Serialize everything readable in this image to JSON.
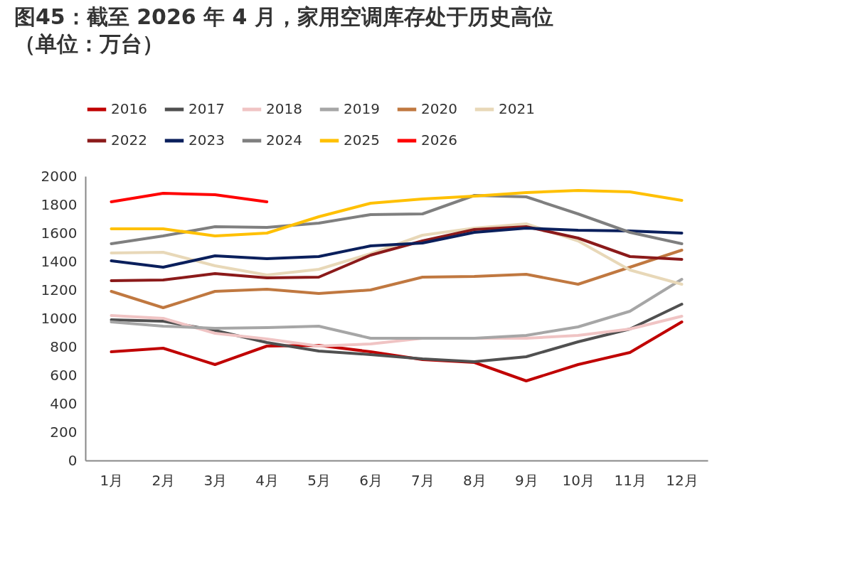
{
  "chart_data": {
    "type": "line",
    "title": "图45：截至 2026 年 4 月，家用空调库存处于历史高位",
    "subtitle": "（单位：万台）",
    "categories": [
      "1月",
      "2月",
      "3月",
      "4月",
      "5月",
      "6月",
      "7月",
      "8月",
      "9月",
      "10月",
      "11月",
      "12月"
    ],
    "series": [
      {
        "name": "2016",
        "color": "#c00000",
        "values": [
          765,
          790,
          675,
          805,
          810,
          765,
          710,
          690,
          560,
          675,
          760,
          975
        ]
      },
      {
        "name": "2017",
        "color": "#505050",
        "values": [
          990,
          980,
          915,
          830,
          770,
          745,
          715,
          695,
          730,
          835,
          925,
          1100
        ]
      },
      {
        "name": "2018",
        "color": "#f0c4c4",
        "values": [
          1020,
          1000,
          895,
          855,
          805,
          820,
          860,
          860,
          860,
          880,
          925,
          1015
        ]
      },
      {
        "name": "2019",
        "color": "#a6a6a6",
        "values": [
          975,
          945,
          930,
          935,
          945,
          860,
          860,
          860,
          880,
          940,
          1050,
          1275
        ]
      },
      {
        "name": "2020",
        "color": "#c07840",
        "values": [
          1190,
          1075,
          1190,
          1205,
          1175,
          1200,
          1290,
          1295,
          1310,
          1240,
          1360,
          1480
        ]
      },
      {
        "name": "2021",
        "color": "#e8d8b8",
        "values": [
          1460,
          1465,
          1370,
          1305,
          1345,
          1455,
          1585,
          1635,
          1665,
          1545,
          1340,
          1240
        ]
      },
      {
        "name": "2022",
        "color": "#8b1a1a",
        "values": [
          1265,
          1270,
          1315,
          1285,
          1290,
          1445,
          1545,
          1625,
          1645,
          1565,
          1435,
          1415
        ]
      },
      {
        "name": "2023",
        "color": "#0a1f5c",
        "values": [
          1405,
          1360,
          1440,
          1420,
          1435,
          1510,
          1530,
          1605,
          1635,
          1620,
          1615,
          1600
        ]
      },
      {
        "name": "2024",
        "color": "#7f7f7f",
        "values": [
          1525,
          1580,
          1645,
          1640,
          1670,
          1730,
          1735,
          1865,
          1855,
          1735,
          1605,
          1525
        ]
      },
      {
        "name": "2025",
        "color": "#ffc000",
        "values": [
          1630,
          1630,
          1580,
          1600,
          1715,
          1810,
          1840,
          1860,
          1885,
          1900,
          1890,
          1830
        ]
      },
      {
        "name": "2026",
        "color": "#ff0000",
        "values": [
          1820,
          1880,
          1870,
          1820,
          null,
          null,
          null,
          null,
          null,
          null,
          null,
          null
        ]
      }
    ],
    "ylim": [
      0,
      2000
    ],
    "yticks": [
      0,
      200,
      400,
      600,
      800,
      1000,
      1200,
      1400,
      1600,
      1800,
      2000
    ],
    "grid": false,
    "legend": "top",
    "marker": "none",
    "line_style": "solid"
  }
}
